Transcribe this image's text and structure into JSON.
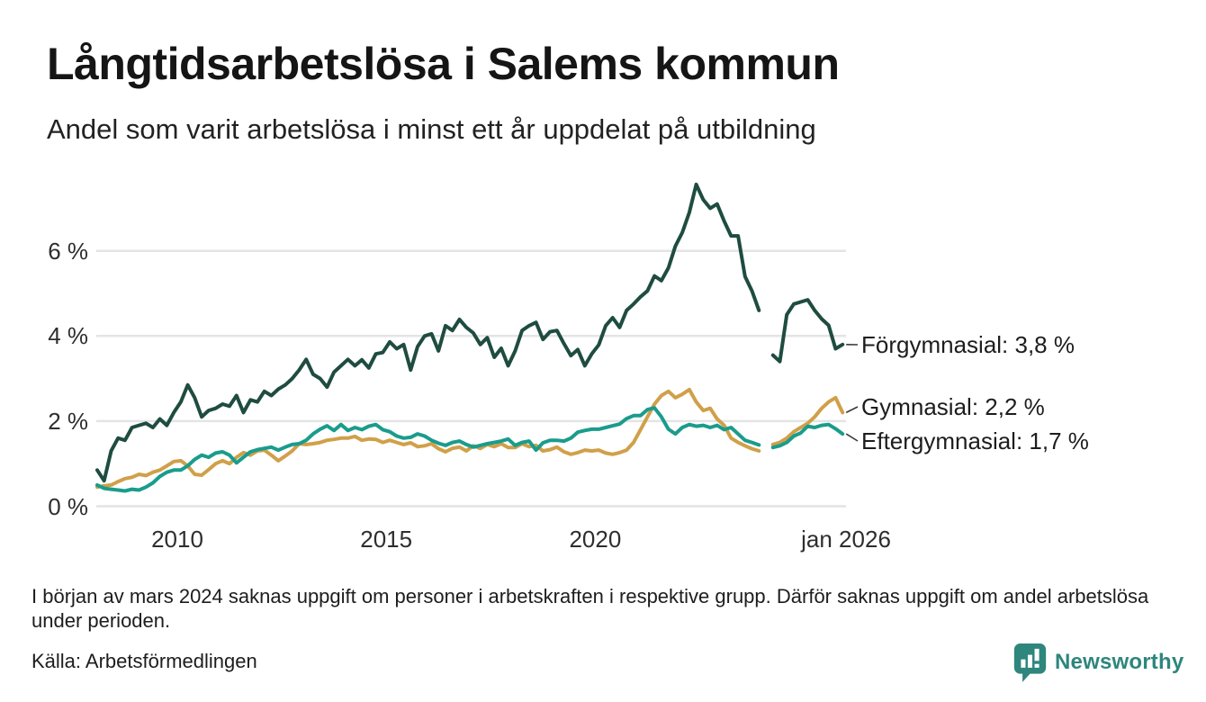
{
  "header": {
    "title": "Långtidsarbetslösa i Salems kommun",
    "subtitle": "Andel som varit arbetslösa i minst ett år uppdelat på utbildning"
  },
  "chart_data": {
    "type": "line",
    "title": "Långtidsarbetslösa i Salems kommun",
    "xlabel": "",
    "ylabel": "",
    "unit": "%",
    "x_start": 2008.083,
    "x_step": 0.16667,
    "x_range": [
      2008.083,
      2025.917
    ],
    "ylim": [
      0,
      7.8
    ],
    "grid": "horizontal",
    "gridline_color": "#e4e4e4",
    "x_ticks": [
      {
        "value": 2010,
        "label": "2010"
      },
      {
        "value": 2015,
        "label": "2015"
      },
      {
        "value": 2020,
        "label": "2020"
      },
      {
        "value": 2026,
        "label": "jan 2026"
      }
    ],
    "y_ticks": [
      {
        "value": 0,
        "label": "0 %"
      },
      {
        "value": 2,
        "label": "2 %"
      },
      {
        "value": 4,
        "label": "4 %"
      },
      {
        "value": 6,
        "label": "6 %"
      }
    ],
    "series": [
      {
        "name": "Förgymnasial",
        "color": "#1f4c40",
        "end_value": "3,8 %",
        "end_label": "Förgymnasial: 3,8 %",
        "values": [
          0.85,
          0.6,
          1.3,
          1.6,
          1.55,
          1.85,
          1.9,
          1.95,
          1.85,
          2.05,
          1.9,
          2.2,
          2.45,
          2.85,
          2.55,
          2.1,
          2.25,
          2.3,
          2.4,
          2.35,
          2.6,
          2.2,
          2.5,
          2.45,
          2.7,
          2.6,
          2.75,
          2.85,
          3.0,
          3.2,
          3.45,
          3.1,
          3.0,
          2.8,
          3.15,
          3.3,
          3.45,
          3.3,
          3.44,
          3.25,
          3.58,
          3.61,
          3.86,
          3.7,
          3.8,
          3.2,
          3.75,
          4.0,
          4.05,
          3.65,
          4.24,
          4.13,
          4.39,
          4.2,
          4.07,
          3.8,
          3.96,
          3.5,
          3.71,
          3.3,
          3.65,
          4.13,
          4.24,
          4.32,
          3.92,
          4.1,
          4.13,
          3.82,
          3.54,
          3.68,
          3.3,
          3.58,
          3.79,
          4.24,
          4.43,
          4.2,
          4.6,
          4.75,
          4.92,
          5.06,
          5.41,
          5.3,
          5.6,
          6.11,
          6.43,
          6.9,
          7.56,
          7.2,
          7.0,
          7.1,
          6.7,
          6.35,
          6.35,
          5.4,
          5.06,
          4.6,
          null,
          3.55,
          3.4,
          4.5,
          4.75,
          4.8,
          4.85,
          4.6,
          4.4,
          4.25,
          3.7,
          3.8
        ]
      },
      {
        "name": "Gymnasial",
        "color": "#d0a049",
        "end_value": "2,2 %",
        "end_label": "Gymnasial: 2,2 %",
        "values": [
          0.45,
          0.48,
          0.5,
          0.58,
          0.65,
          0.68,
          0.75,
          0.72,
          0.8,
          0.85,
          0.95,
          1.05,
          1.07,
          0.95,
          0.75,
          0.73,
          0.86,
          1.0,
          1.07,
          1.0,
          1.15,
          1.26,
          1.2,
          1.3,
          1.32,
          1.2,
          1.07,
          1.18,
          1.3,
          1.47,
          1.45,
          1.47,
          1.5,
          1.55,
          1.57,
          1.6,
          1.6,
          1.64,
          1.55,
          1.58,
          1.57,
          1.5,
          1.55,
          1.5,
          1.45,
          1.49,
          1.4,
          1.42,
          1.47,
          1.35,
          1.28,
          1.36,
          1.39,
          1.3,
          1.42,
          1.36,
          1.45,
          1.4,
          1.47,
          1.38,
          1.38,
          1.47,
          1.4,
          1.43,
          1.3,
          1.33,
          1.39,
          1.28,
          1.22,
          1.26,
          1.32,
          1.3,
          1.32,
          1.25,
          1.22,
          1.26,
          1.32,
          1.5,
          1.8,
          2.1,
          2.4,
          2.6,
          2.7,
          2.55,
          2.63,
          2.74,
          2.45,
          2.25,
          2.3,
          2.05,
          1.9,
          1.6,
          1.5,
          1.42,
          1.35,
          1.3,
          null,
          1.45,
          1.5,
          1.6,
          1.75,
          1.85,
          1.95,
          2.1,
          2.3,
          2.45,
          2.55,
          2.2
        ]
      },
      {
        "name": "Eftergymnasial",
        "color": "#1a9c8c",
        "end_value": "1,7 %",
        "end_label": "Eftergymnasial: 1,7 %",
        "values": [
          0.5,
          0.42,
          0.4,
          0.38,
          0.36,
          0.4,
          0.38,
          0.45,
          0.55,
          0.7,
          0.8,
          0.85,
          0.85,
          0.95,
          1.1,
          1.2,
          1.15,
          1.25,
          1.28,
          1.2,
          1.02,
          1.15,
          1.28,
          1.33,
          1.36,
          1.39,
          1.32,
          1.39,
          1.45,
          1.47,
          1.55,
          1.7,
          1.81,
          1.89,
          1.78,
          1.92,
          1.78,
          1.85,
          1.8,
          1.88,
          1.92,
          1.8,
          1.75,
          1.65,
          1.6,
          1.62,
          1.7,
          1.65,
          1.55,
          1.48,
          1.43,
          1.5,
          1.53,
          1.45,
          1.39,
          1.43,
          1.47,
          1.5,
          1.53,
          1.58,
          1.43,
          1.5,
          1.53,
          1.32,
          1.49,
          1.55,
          1.55,
          1.53,
          1.6,
          1.74,
          1.78,
          1.81,
          1.81,
          1.85,
          1.89,
          1.93,
          2.06,
          2.13,
          2.13,
          2.27,
          2.31,
          2.1,
          1.81,
          1.7,
          1.85,
          1.92,
          1.88,
          1.9,
          1.85,
          1.9,
          1.8,
          1.85,
          1.7,
          1.55,
          1.5,
          1.44,
          null,
          1.38,
          1.42,
          1.5,
          1.65,
          1.72,
          1.88,
          1.85,
          1.9,
          1.92,
          1.82,
          1.7
        ]
      }
    ]
  },
  "footnote": {
    "text": "I början av mars 2024 saknas uppgift om personer i arbetskraften i respektive grupp. Därför saknas uppgift om andel arbetslösa under perioden."
  },
  "source": {
    "text": "Källa: Arbetsförmedlingen"
  },
  "branding": {
    "name": "Newsworthy"
  }
}
